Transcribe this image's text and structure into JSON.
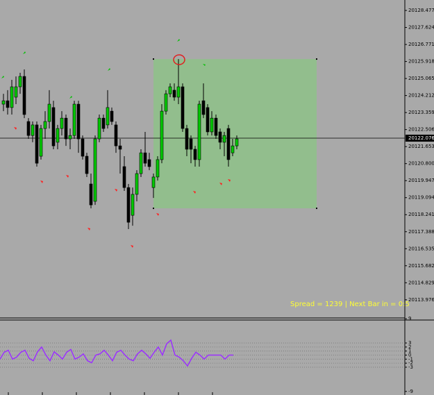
{
  "chart_data": [
    {
      "type": "candlestick",
      "open": [
        20123.78,
        20123.95,
        20123.61,
        20124.13,
        20124.65,
        20125.17,
        20122.91,
        20122.21,
        20122.74,
        20121.17,
        20122.56,
        20122.91,
        20123.61,
        20121.87,
        20122.56,
        20123.08,
        20122.04,
        20122.21,
        20123.78,
        20122.04,
        20121.17,
        20119.78,
        20118.91,
        20122.04,
        20123.08,
        20122.74,
        20123.43,
        20122.74,
        20121.69,
        20120.65,
        20119.6,
        20118.21,
        20119.26,
        20120.3,
        20121.34,
        20121.0,
        20119.6,
        20120.13,
        20121.0,
        20123.43,
        20124.3,
        20124.48,
        20124.13,
        20124.65,
        20122.56,
        20122.04,
        20121.52,
        20121.0,
        20123.95,
        20123.61,
        20122.39,
        20123.08,
        20122.39,
        20121.87,
        20122.56,
        20121.34,
        20121.69
      ],
      "high": [
        20124.3,
        20124.48,
        20125.0,
        20125.17,
        20125.35,
        20125.52,
        20123.08,
        20122.91,
        20122.91,
        20122.74,
        20123.43,
        20124.48,
        20123.95,
        20122.74,
        20123.43,
        20123.26,
        20122.56,
        20123.95,
        20123.95,
        20122.21,
        20121.34,
        20120.3,
        20122.21,
        20123.26,
        20123.26,
        20124.48,
        20123.61,
        20122.91,
        20122.04,
        20121.17,
        20119.78,
        20119.6,
        20120.47,
        20121.52,
        20122.39,
        20121.34,
        20120.3,
        20121.17,
        20123.78,
        20124.48,
        20124.82,
        20124.82,
        20126.04,
        20124.82,
        20122.74,
        20122.21,
        20121.69,
        20123.95,
        20124.82,
        20123.78,
        20123.43,
        20123.26,
        20122.56,
        20122.39,
        20122.74,
        20122.04,
        20122.21
      ],
      "low": [
        20123.43,
        20123.26,
        20123.26,
        20123.78,
        20124.3,
        20123.08,
        20122.04,
        20121.87,
        20120.65,
        20121.0,
        20122.04,
        20122.56,
        20121.52,
        20121.52,
        20122.21,
        20121.69,
        20121.52,
        20122.04,
        20121.34,
        20121.0,
        20120.13,
        20118.56,
        20118.73,
        20121.87,
        20122.39,
        20122.56,
        20122.74,
        20121.34,
        20120.3,
        20119.43,
        20117.52,
        20117.69,
        20118.91,
        20120.13,
        20120.65,
        20120.47,
        20119.08,
        20119.95,
        20120.82,
        20123.26,
        20124.13,
        20123.95,
        20123.78,
        20122.39,
        20121.17,
        20120.82,
        20120.65,
        20120.65,
        20123.08,
        20122.21,
        20122.21,
        20122.04,
        20121.52,
        20121.17,
        20120.65,
        20121.17,
        20121.52
      ],
      "close": [
        20123.95,
        20123.61,
        20124.65,
        20124.65,
        20125.17,
        20123.26,
        20122.21,
        20122.74,
        20120.82,
        20122.56,
        20122.91,
        20123.78,
        20121.69,
        20122.56,
        20123.08,
        20122.04,
        20122.21,
        20123.78,
        20122.04,
        20121.17,
        20120.3,
        20118.73,
        20122.04,
        20123.08,
        20122.56,
        20123.61,
        20122.91,
        20121.69,
        20121.52,
        20119.6,
        20117.86,
        20119.26,
        20120.3,
        20121.34,
        20120.82,
        20120.65,
        20120.13,
        20121.0,
        20123.43,
        20124.3,
        20124.65,
        20124.13,
        20124.65,
        20122.56,
        20121.52,
        20121.52,
        20121.0,
        20123.78,
        20123.26,
        20122.39,
        20123.08,
        20122.21,
        20121.87,
        20122.21,
        20121.0,
        20121.69,
        20122.04
      ],
      "up_color": "#00c800",
      "down_color": "#000000",
      "ylim": [
        20113.1,
        20129.0
      ],
      "yticks": [
        20128.477,
        20127.624,
        20126.771,
        20125.918,
        20125.065,
        20124.212,
        20123.359,
        20122.506,
        20121.653,
        {
          "value": 20120.8,
          "label": "20120.800"
        },
        20119.947,
        20119.094,
        20118.241,
        20117.388,
        20116.535,
        20115.682,
        20114.829,
        20113.976
      ],
      "current_price": 20122.076,
      "rectangle": {
        "high": 20126.04,
        "low": 20118.56,
        "color": "#8fc08a"
      },
      "status_text": "Spread = 1239 |  Next Bar in = 0:5"
    },
    {
      "type": "line",
      "values": [
        -1,
        0.7,
        1.2,
        -1,
        -0.5,
        0.7,
        1.2,
        -0.8,
        -1.4,
        0.8,
        2,
        0,
        -1.4,
        0.8,
        0,
        -1,
        0.7,
        1.4,
        -1,
        -0.5,
        0.3,
        -1.4,
        -1.9,
        0,
        0.3,
        1.2,
        0,
        -1.4,
        0.7,
        1.2,
        0,
        -1,
        -1.4,
        0.3,
        1.2,
        0.3,
        -0.8,
        0.7,
        2,
        0,
        2.8,
        3.7,
        0,
        -0.5,
        -1.4,
        -2.7,
        -0.8,
        0.7,
        0,
        -1,
        0,
        0,
        0,
        0,
        -1,
        0,
        0
      ],
      "color": "#9b30ff",
      "ylim": [
        -9.2,
        9.2
      ],
      "yticks": [
        9,
        3,
        2,
        1,
        0,
        -1,
        -2,
        -3,
        -9
      ],
      "grid_levels": [
        3,
        2,
        1,
        0,
        -1,
        -2,
        -3
      ]
    }
  ]
}
